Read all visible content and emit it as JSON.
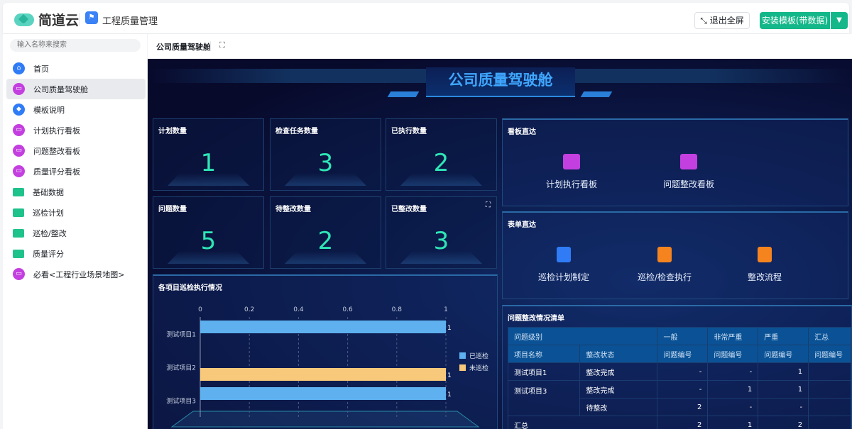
{
  "header": {
    "brand": "简道云",
    "app_name": "工程质量管理",
    "exit_fullscreen": "退出全屏",
    "install_template": "安装模板(带数据)"
  },
  "sidebar": {
    "search_placeholder": "输入名称来搜索",
    "items": [
      {
        "label": "首页",
        "icon": "home-icon",
        "color": "#2f7cf6"
      },
      {
        "label": "公司质量驾驶舱",
        "icon": "dashboard-icon",
        "color": "#c43fe0",
        "active": true
      },
      {
        "label": "模板说明",
        "icon": "tag-icon",
        "color": "#2f7cf6"
      },
      {
        "label": "计划执行看板",
        "icon": "dashboard-icon",
        "color": "#c43fe0"
      },
      {
        "label": "问题整改看板",
        "icon": "dashboard-icon",
        "color": "#c43fe0"
      },
      {
        "label": "质量评分看板",
        "icon": "dashboard-icon",
        "color": "#c43fe0"
      },
      {
        "label": "基础数据",
        "icon": "folder-icon",
        "color": "#1ec28b"
      },
      {
        "label": "巡检计划",
        "icon": "folder-icon",
        "color": "#1ec28b"
      },
      {
        "label": "巡检/整改",
        "icon": "folder-icon",
        "color": "#1ec28b"
      },
      {
        "label": "质量评分",
        "icon": "folder-icon",
        "color": "#1ec28b"
      },
      {
        "label": "必看<工程行业场景地图>",
        "icon": "dashboard-icon",
        "color": "#c43fe0"
      }
    ]
  },
  "tab": {
    "label": "公司质量驾驶舱"
  },
  "dashboard": {
    "title": "公司质量驾驶舱",
    "stats": [
      {
        "label": "计划数量",
        "value": "1"
      },
      {
        "label": "检查任务数量",
        "value": "3"
      },
      {
        "label": "已执行数量",
        "value": "2"
      },
      {
        "label": "问题数量",
        "value": "5"
      },
      {
        "label": "待整改数量",
        "value": "2"
      },
      {
        "label": "已整改数量",
        "value": "3"
      }
    ],
    "boards": {
      "title": "看板直达",
      "items": [
        "计划执行看板",
        "问题整改看板"
      ]
    },
    "forms": {
      "title": "表单直达",
      "items": [
        {
          "label": "巡检计划制定",
          "color": "#2f7cf6"
        },
        {
          "label": "巡检/检查执行",
          "color": "#f5841f"
        },
        {
          "label": "整改流程",
          "color": "#f5841f"
        }
      ]
    },
    "table": {
      "title": "问题整改情况清单",
      "header1": [
        "问题级别",
        "一般",
        "非常严重",
        "严重",
        "汇总"
      ],
      "header2": [
        "项目名称",
        "整改状态",
        "问题编号",
        "问题编号",
        "问题编号",
        "问题编号"
      ],
      "rows": [
        {
          "project": "测试项目1",
          "status": "整改完成",
          "values": [
            "-",
            "-",
            "1",
            ""
          ]
        },
        {
          "project": "测试项目3",
          "status": "整改完成",
          "values": [
            "-",
            "1",
            "1",
            ""
          ]
        },
        {
          "project": "",
          "status": "待整改",
          "values": [
            "2",
            "-",
            "-",
            ""
          ]
        }
      ],
      "total": {
        "label": "汇总",
        "values": [
          "2",
          "1",
          "2",
          ""
        ]
      }
    }
  },
  "chart_data": {
    "type": "bar",
    "orientation": "horizontal",
    "title": "各项目巡检执行情况",
    "categories": [
      "测试项目1",
      "测试项目2",
      "测试项目3"
    ],
    "series": [
      {
        "name": "已巡检",
        "values": [
          1,
          0,
          1
        ],
        "color": "#5eb0ee"
      },
      {
        "name": "未巡检",
        "values": [
          0,
          1,
          0
        ],
        "color": "#f8c97a"
      }
    ],
    "xlim": [
      0,
      1
    ],
    "xticks": [
      "0",
      "0.2",
      "0.4",
      "0.6",
      "0.8",
      "1"
    ],
    "legend": "right",
    "grid": "vertical dashed"
  }
}
